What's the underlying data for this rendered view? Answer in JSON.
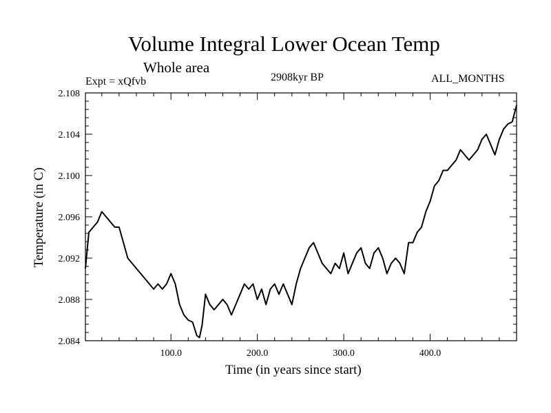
{
  "chart_data": {
    "type": "line",
    "title": "Volume Integral Lower Ocean Temp",
    "subtitle": "Whole area",
    "annotations": {
      "left": "Expt = xQfvb",
      "center": "2908kyr BP",
      "right": "ALL_MONTHS"
    },
    "xlabel": "Time (in years since start)",
    "ylabel": "Temperature (in C)",
    "xlim": [
      1,
      500
    ],
    "ylim": [
      2.084,
      2.108
    ],
    "xticks": [
      100,
      200,
      300,
      400
    ],
    "xtick_labels": [
      "100.0",
      "200.0",
      "300.0",
      "400.0"
    ],
    "yticks": [
      2.084,
      2.088,
      2.092,
      2.096,
      2.1,
      2.104,
      2.108
    ],
    "ytick_labels": [
      "2.084",
      "2.088",
      "2.092",
      "2.096",
      "2.100",
      "2.104",
      "2.108"
    ],
    "series": [
      {
        "name": "Volume Integral Lower Ocean Temp",
        "x": [
          1,
          5,
          10,
          15,
          20,
          25,
          30,
          35,
          40,
          45,
          50,
          55,
          60,
          65,
          70,
          75,
          80,
          85,
          90,
          95,
          100,
          105,
          110,
          115,
          120,
          125,
          130,
          133,
          136,
          140,
          145,
          150,
          155,
          160,
          165,
          170,
          175,
          180,
          185,
          190,
          195,
          200,
          205,
          210,
          215,
          220,
          225,
          230,
          235,
          240,
          245,
          250,
          255,
          260,
          265,
          270,
          275,
          280,
          285,
          290,
          295,
          300,
          305,
          310,
          315,
          320,
          325,
          330,
          335,
          340,
          345,
          350,
          355,
          360,
          365,
          370,
          375,
          380,
          385,
          390,
          395,
          400,
          405,
          410,
          415,
          420,
          425,
          430,
          435,
          440,
          445,
          450,
          455,
          460,
          465,
          470,
          475,
          480,
          485,
          490,
          495,
          500
        ],
        "values": [
          2.091,
          2.0945,
          2.095,
          2.0955,
          2.0965,
          2.096,
          2.0955,
          2.095,
          2.095,
          2.0935,
          2.092,
          2.0915,
          2.091,
          2.0905,
          2.09,
          2.0895,
          2.089,
          2.0895,
          2.089,
          2.0895,
          2.0905,
          2.0895,
          2.0875,
          2.0865,
          2.086,
          2.0858,
          2.0845,
          2.0843,
          2.0855,
          2.0885,
          2.0875,
          2.087,
          2.0875,
          2.088,
          2.0875,
          2.0865,
          2.0875,
          2.0885,
          2.0895,
          2.089,
          2.0895,
          2.088,
          2.089,
          2.0875,
          2.089,
          2.0895,
          2.0885,
          2.0895,
          2.0885,
          2.0875,
          2.0895,
          2.091,
          2.092,
          2.093,
          2.0935,
          2.0925,
          2.0915,
          2.091,
          2.0905,
          2.0915,
          2.091,
          2.0925,
          2.0905,
          2.0915,
          2.0925,
          2.093,
          2.0915,
          2.091,
          2.0925,
          2.093,
          2.092,
          2.0905,
          2.0915,
          2.092,
          2.0915,
          2.0905,
          2.0935,
          2.0935,
          2.0945,
          2.095,
          2.0965,
          2.0975,
          2.099,
          2.0995,
          2.1005,
          2.1005,
          2.101,
          2.1015,
          2.1025,
          2.102,
          2.1015,
          2.102,
          2.1025,
          2.1035,
          2.104,
          2.103,
          2.102,
          2.1035,
          2.1045,
          2.105,
          2.1052,
          2.1068
        ]
      }
    ]
  }
}
